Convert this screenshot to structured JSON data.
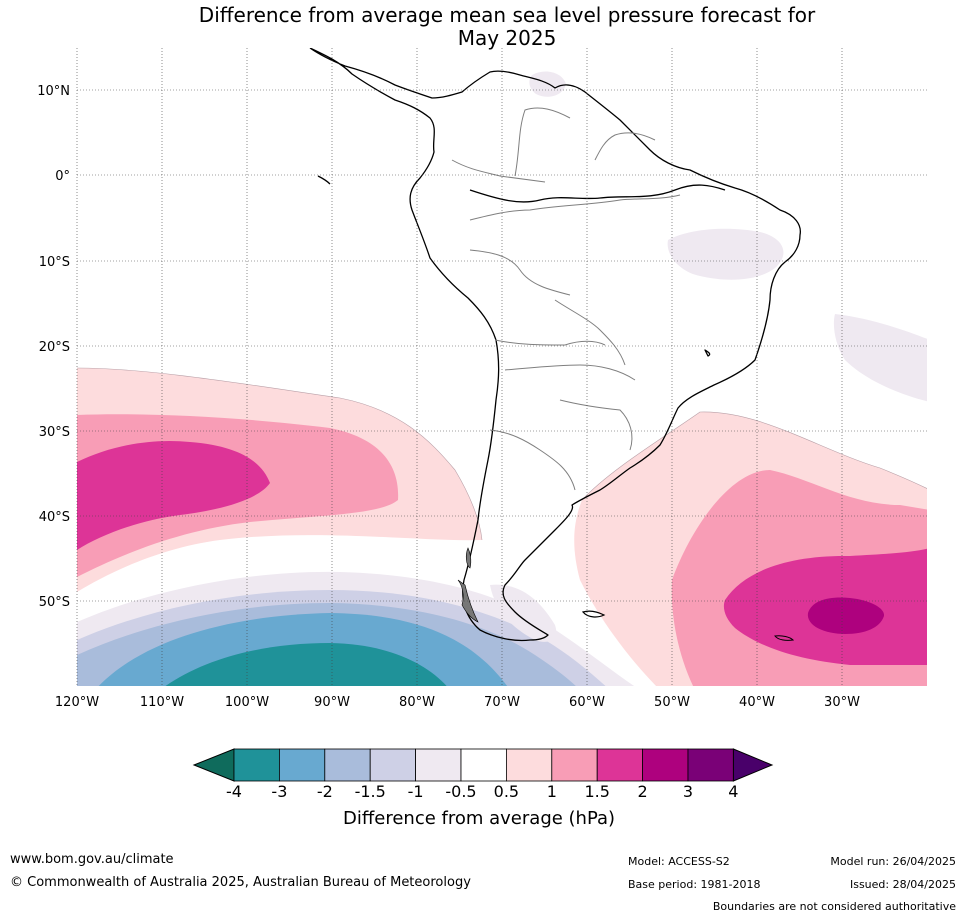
{
  "title": {
    "line1": "Difference from average mean sea level pressure forecast for",
    "line2": "May 2025"
  },
  "map": {
    "lat_labels": [
      "10°N",
      "0°",
      "10°S",
      "20°S",
      "30°S",
      "40°S",
      "50°S"
    ],
    "lon_labels": [
      "120°W",
      "110°W",
      "100°W",
      "90°W",
      "80°W",
      "70°W",
      "60°W",
      "50°W",
      "40°W",
      "30°W"
    ],
    "colors": {
      "le_-4": "#0f6b5c",
      "-4_-3": "#1f9299",
      "-3_-2": "#68a9d0",
      "-2_-1.5": "#a9bcdb",
      "-1.5_-1": "#ced0e6",
      "-1_-0.5": "#efe9f1",
      "-0.5_0.5": "#ffffff",
      "0.5_1": "#fddcdd",
      "1_1.5": "#f89db6",
      "1.5_2": "#dd3497",
      "2_3": "#ae017e",
      "3_4": "#7a0177",
      "ge_4": "#49006a"
    }
  },
  "colorbar": {
    "tick_labels": [
      "-4",
      "-3",
      "-2",
      "-1.5",
      "-1",
      "-0.5",
      "0.5",
      "1",
      "1.5",
      "2",
      "3",
      "4"
    ],
    "title": "Difference from average (hPa)"
  },
  "footer": {
    "website": "www.bom.gov.au/climate",
    "copyright": "© Commonwealth of Australia 2025, Australian Bureau of Meteorology",
    "model": "Model: ACCESS-S2",
    "base_period": "Base period: 1981-2018",
    "model_run": "Model run: 26/04/2025",
    "issued": "Issued: 28/04/2025",
    "disclaimer": "Boundaries are not considered authoritative"
  }
}
